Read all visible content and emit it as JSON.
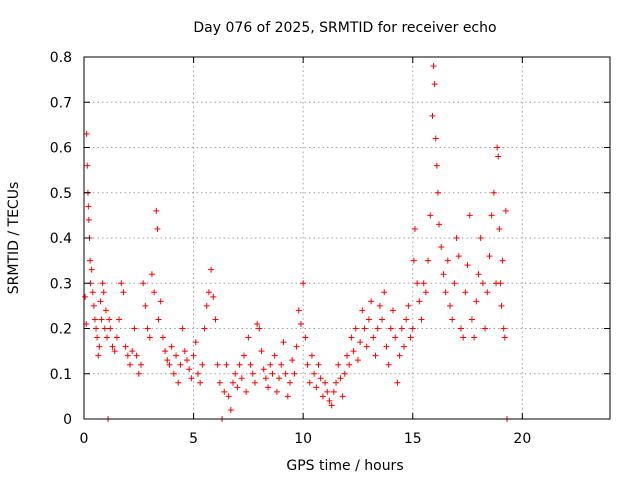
{
  "chart_data": {
    "type": "scatter",
    "title": "Day 076 of 2025, SRMTID for receiver echo",
    "xlabel": "GPS time / hours",
    "ylabel": "SRMTID / TECUs",
    "xlim": [
      0,
      24
    ],
    "ylim": [
      0,
      0.8
    ],
    "x_ticks": [
      0,
      5,
      10,
      15,
      20
    ],
    "y_ticks": [
      0,
      0.1,
      0.2,
      0.3,
      0.4,
      0.5,
      0.6,
      0.7,
      0.8
    ],
    "x_tick_labels": [
      "0",
      "5",
      "10",
      "15",
      "20"
    ],
    "y_tick_labels": [
      "0",
      "0.1",
      "0.2",
      "0.3",
      "0.4",
      "0.5",
      "0.6",
      "0.7",
      "0.8"
    ],
    "grid": true,
    "marker": "+",
    "color": "#ff0000",
    "series": [
      {
        "name": "SRMTID",
        "points": [
          [
            0.05,
            0.27
          ],
          [
            0.1,
            0.21
          ],
          [
            0.12,
            0.63
          ],
          [
            0.15,
            0.56
          ],
          [
            0.18,
            0.5
          ],
          [
            0.2,
            0.47
          ],
          [
            0.22,
            0.44
          ],
          [
            0.25,
            0.4
          ],
          [
            0.28,
            0.35
          ],
          [
            0.3,
            0.3
          ],
          [
            0.35,
            0.33
          ],
          [
            0.4,
            0.28
          ],
          [
            0.45,
            0.25
          ],
          [
            0.5,
            0.22
          ],
          [
            0.55,
            0.2
          ],
          [
            0.6,
            0.18
          ],
          [
            0.65,
            0.14
          ],
          [
            0.7,
            0.16
          ],
          [
            0.75,
            0.26
          ],
          [
            0.8,
            0.22
          ],
          [
            0.85,
            0.3
          ],
          [
            0.9,
            0.28
          ],
          [
            0.95,
            0.2
          ],
          [
            1.0,
            0.24
          ],
          [
            1.05,
            0.18
          ],
          [
            1.1,
            0.0
          ],
          [
            1.15,
            0.22
          ],
          [
            1.2,
            0.2
          ],
          [
            1.3,
            0.16
          ],
          [
            1.4,
            0.15
          ],
          [
            1.5,
            0.18
          ],
          [
            1.6,
            0.22
          ],
          [
            1.7,
            0.3
          ],
          [
            1.8,
            0.28
          ],
          [
            1.9,
            0.16
          ],
          [
            2.0,
            0.14
          ],
          [
            2.1,
            0.12
          ],
          [
            2.2,
            0.15
          ],
          [
            2.3,
            0.2
          ],
          [
            2.4,
            0.14
          ],
          [
            2.5,
            0.1
          ],
          [
            2.6,
            0.12
          ],
          [
            2.7,
            0.3
          ],
          [
            2.8,
            0.25
          ],
          [
            2.9,
            0.2
          ],
          [
            3.0,
            0.18
          ],
          [
            3.1,
            0.32
          ],
          [
            3.2,
            0.28
          ],
          [
            3.3,
            0.46
          ],
          [
            3.35,
            0.42
          ],
          [
            3.4,
            0.22
          ],
          [
            3.5,
            0.26
          ],
          [
            3.6,
            0.18
          ],
          [
            3.7,
            0.15
          ],
          [
            3.8,
            0.13
          ],
          [
            3.9,
            0.12
          ],
          [
            4.0,
            0.16
          ],
          [
            4.1,
            0.1
          ],
          [
            4.2,
            0.14
          ],
          [
            4.3,
            0.08
          ],
          [
            4.4,
            0.12
          ],
          [
            4.5,
            0.2
          ],
          [
            4.6,
            0.15
          ],
          [
            4.7,
            0.13
          ],
          [
            4.8,
            0.11
          ],
          [
            4.9,
            0.09
          ],
          [
            5.0,
            0.14
          ],
          [
            5.1,
            0.17
          ],
          [
            5.2,
            0.1
          ],
          [
            5.3,
            0.08
          ],
          [
            5.4,
            0.12
          ],
          [
            5.5,
            0.2
          ],
          [
            5.6,
            0.25
          ],
          [
            5.7,
            0.28
          ],
          [
            5.8,
            0.33
          ],
          [
            5.9,
            0.27
          ],
          [
            6.0,
            0.22
          ],
          [
            6.1,
            0.12
          ],
          [
            6.2,
            0.08
          ],
          [
            6.3,
            0.0
          ],
          [
            6.4,
            0.06
          ],
          [
            6.5,
            0.12
          ],
          [
            6.6,
            0.05
          ],
          [
            6.7,
            0.02
          ],
          [
            6.8,
            0.08
          ],
          [
            6.9,
            0.1
          ],
          [
            7.0,
            0.07
          ],
          [
            7.1,
            0.12
          ],
          [
            7.2,
            0.09
          ],
          [
            7.3,
            0.14
          ],
          [
            7.4,
            0.06
          ],
          [
            7.5,
            0.18
          ],
          [
            7.6,
            0.12
          ],
          [
            7.7,
            0.1
          ],
          [
            7.8,
            0.08
          ],
          [
            7.9,
            0.21
          ],
          [
            8.0,
            0.2
          ],
          [
            8.1,
            0.15
          ],
          [
            8.2,
            0.11
          ],
          [
            8.3,
            0.09
          ],
          [
            8.4,
            0.07
          ],
          [
            8.5,
            0.12
          ],
          [
            8.6,
            0.1
          ],
          [
            8.7,
            0.14
          ],
          [
            8.8,
            0.06
          ],
          [
            8.9,
            0.09
          ],
          [
            9.0,
            0.12
          ],
          [
            9.1,
            0.17
          ],
          [
            9.2,
            0.1
          ],
          [
            9.3,
            0.05
          ],
          [
            9.4,
            0.08
          ],
          [
            9.5,
            0.13
          ],
          [
            9.6,
            0.1
          ],
          [
            9.7,
            0.16
          ],
          [
            9.8,
            0.24
          ],
          [
            9.9,
            0.21
          ],
          [
            10.0,
            0.3
          ],
          [
            10.1,
            0.18
          ],
          [
            10.2,
            0.12
          ],
          [
            10.3,
            0.08
          ],
          [
            10.4,
            0.14
          ],
          [
            10.5,
            0.1
          ],
          [
            10.6,
            0.07
          ],
          [
            10.7,
            0.12
          ],
          [
            10.8,
            0.09
          ],
          [
            10.9,
            0.05
          ],
          [
            11.0,
            0.08
          ],
          [
            11.1,
            0.06
          ],
          [
            11.2,
            0.04
          ],
          [
            11.3,
            0.03
          ],
          [
            11.4,
            0.06
          ],
          [
            11.5,
            0.08
          ],
          [
            11.6,
            0.12
          ],
          [
            11.7,
            0.09
          ],
          [
            11.8,
            0.05
          ],
          [
            11.9,
            0.1
          ],
          [
            12.0,
            0.14
          ],
          [
            12.1,
            0.12
          ],
          [
            12.2,
            0.18
          ],
          [
            12.3,
            0.15
          ],
          [
            12.4,
            0.2
          ],
          [
            12.5,
            0.13
          ],
          [
            12.6,
            0.17
          ],
          [
            12.7,
            0.24
          ],
          [
            12.8,
            0.2
          ],
          [
            12.9,
            0.16
          ],
          [
            13.0,
            0.22
          ],
          [
            13.1,
            0.26
          ],
          [
            13.2,
            0.18
          ],
          [
            13.3,
            0.14
          ],
          [
            13.4,
            0.2
          ],
          [
            13.5,
            0.25
          ],
          [
            13.6,
            0.22
          ],
          [
            13.7,
            0.28
          ],
          [
            13.8,
            0.16
          ],
          [
            13.9,
            0.12
          ],
          [
            14.0,
            0.2
          ],
          [
            14.1,
            0.24
          ],
          [
            14.2,
            0.18
          ],
          [
            14.3,
            0.08
          ],
          [
            14.4,
            0.14
          ],
          [
            14.5,
            0.2
          ],
          [
            14.6,
            0.16
          ],
          [
            14.7,
            0.22
          ],
          [
            14.8,
            0.25
          ],
          [
            14.9,
            0.18
          ],
          [
            15.0,
            0.2
          ],
          [
            15.05,
            0.35
          ],
          [
            15.1,
            0.42
          ],
          [
            15.2,
            0.3
          ],
          [
            15.3,
            0.26
          ],
          [
            15.4,
            0.22
          ],
          [
            15.5,
            0.3
          ],
          [
            15.6,
            0.28
          ],
          [
            15.7,
            0.35
          ],
          [
            15.8,
            0.45
          ],
          [
            15.9,
            0.67
          ],
          [
            15.95,
            0.78
          ],
          [
            16.0,
            0.74
          ],
          [
            16.05,
            0.62
          ],
          [
            16.1,
            0.56
          ],
          [
            16.15,
            0.5
          ],
          [
            16.2,
            0.43
          ],
          [
            16.3,
            0.38
          ],
          [
            16.4,
            0.32
          ],
          [
            16.5,
            0.28
          ],
          [
            16.6,
            0.35
          ],
          [
            16.7,
            0.25
          ],
          [
            16.8,
            0.22
          ],
          [
            16.9,
            0.3
          ],
          [
            17.0,
            0.4
          ],
          [
            17.1,
            0.36
          ],
          [
            17.2,
            0.2
          ],
          [
            17.3,
            0.18
          ],
          [
            17.4,
            0.28
          ],
          [
            17.5,
            0.34
          ],
          [
            17.6,
            0.45
          ],
          [
            17.7,
            0.22
          ],
          [
            17.8,
            0.18
          ],
          [
            17.9,
            0.26
          ],
          [
            18.0,
            0.32
          ],
          [
            18.1,
            0.4
          ],
          [
            18.2,
            0.3
          ],
          [
            18.3,
            0.2
          ],
          [
            18.4,
            0.28
          ],
          [
            18.5,
            0.36
          ],
          [
            18.6,
            0.45
          ],
          [
            18.7,
            0.5
          ],
          [
            18.8,
            0.3
          ],
          [
            18.85,
            0.6
          ],
          [
            18.9,
            0.58
          ],
          [
            18.95,
            0.42
          ],
          [
            19.0,
            0.3
          ],
          [
            19.05,
            0.25
          ],
          [
            19.1,
            0.35
          ],
          [
            19.15,
            0.2
          ],
          [
            19.2,
            0.18
          ],
          [
            19.25,
            0.46
          ],
          [
            19.3,
            0.0
          ]
        ]
      }
    ]
  }
}
